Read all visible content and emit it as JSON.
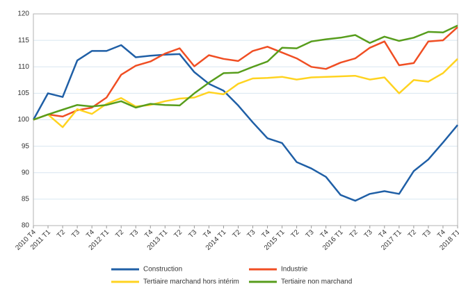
{
  "chart_data": {
    "type": "line",
    "categories": [
      "2010 T4",
      "2011 T1",
      "T2",
      "T3",
      "T4",
      "2012 T1",
      "T2",
      "T3",
      "T4",
      "2013 T1",
      "T2",
      "T3",
      "T4",
      "2014 T1",
      "T2",
      "T3",
      "T4",
      "2015 T1",
      "T2",
      "T3",
      "T4",
      "2016 T1",
      "T2",
      "T3",
      "T4",
      "2017 T1",
      "T2",
      "T3",
      "T4",
      "2018 T1"
    ],
    "series": [
      {
        "name": "Construction",
        "color": "#1f5fa6",
        "values": [
          100,
          105,
          104.3,
          111.2,
          113,
          113,
          114.1,
          111.8,
          112.1,
          112.3,
          112.4,
          109,
          106.8,
          105.5,
          102.7,
          99.5,
          96.5,
          95.6,
          92,
          90.8,
          89.2,
          85.8,
          84.7,
          86,
          86.5,
          86,
          90.3,
          92.5,
          95.7,
          99
        ]
      },
      {
        "name": "Industrie",
        "color": "#f04e23",
        "values": [
          100,
          101,
          100.6,
          101.8,
          102.3,
          104.2,
          108.5,
          110.2,
          111,
          112.5,
          113.5,
          110.1,
          112.2,
          111.5,
          111.1,
          113,
          113.8,
          112.7,
          111.6,
          110,
          109.6,
          110.8,
          111.6,
          113.6,
          114.8,
          110.3,
          110.7,
          114.8,
          115,
          117.5
        ]
      },
      {
        "name": "Tertiaire marchand hors intérim",
        "color": "#ffd320",
        "values": [
          100,
          101,
          98.6,
          102,
          101.1,
          103,
          104.1,
          102.5,
          102.8,
          103.5,
          104,
          104.2,
          105.2,
          104.8,
          106.8,
          107.8,
          107.9,
          108.1,
          107.6,
          108,
          108.1,
          108.2,
          108.3,
          107.6,
          108,
          105,
          107.5,
          107.2,
          108.8,
          111.5
        ]
      },
      {
        "name": "Tertiaire non marchand",
        "color": "#579d1c",
        "values": [
          100,
          101,
          101.9,
          102.8,
          102.5,
          102.8,
          103.5,
          102.3,
          103,
          102.8,
          102.7,
          105,
          107,
          108.8,
          108.9,
          110,
          111,
          113.6,
          113.5,
          114.8,
          115.2,
          115.5,
          116,
          114.5,
          115.7,
          114.9,
          115.5,
          116.6,
          116.5,
          117.8
        ]
      }
    ],
    "ylim": [
      80,
      120
    ],
    "yticks": [
      80,
      85,
      90,
      95,
      100,
      105,
      110,
      115,
      120
    ],
    "grid": true
  }
}
